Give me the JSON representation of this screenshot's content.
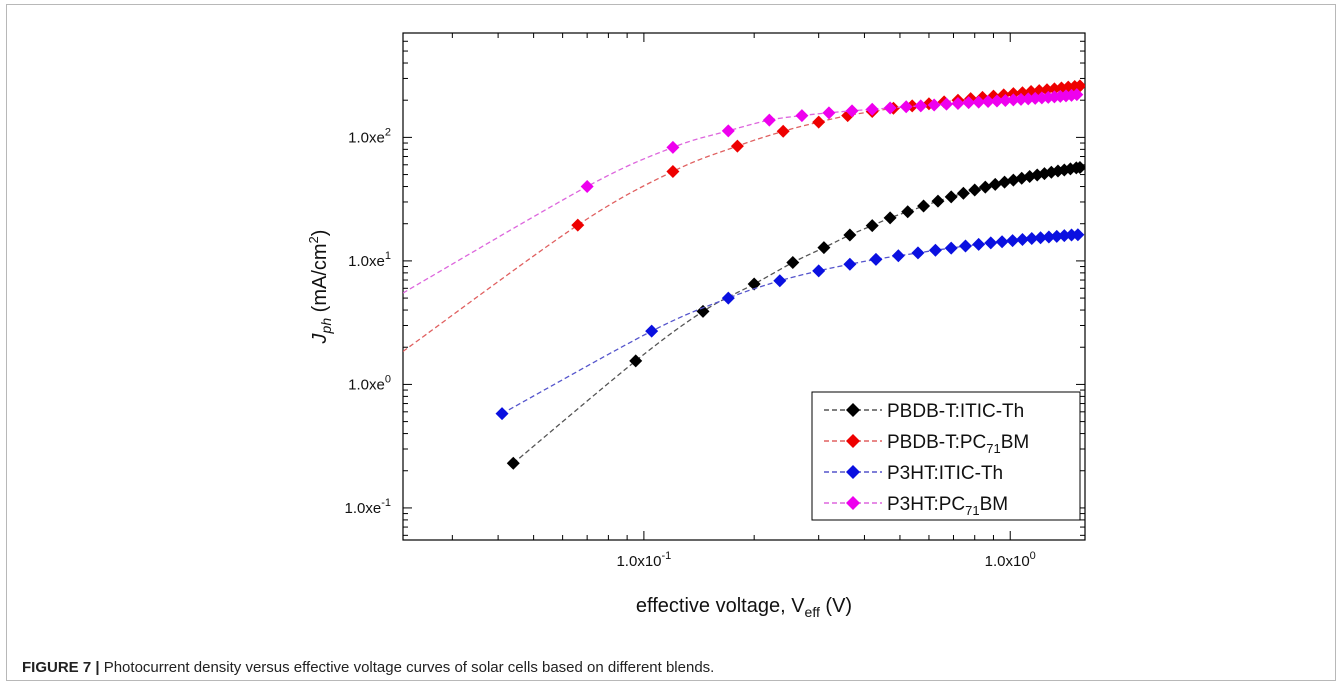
{
  "figure": {
    "caption_label": "FIGURE 7 |",
    "caption_text": " Photocurrent density versus effective voltage curves of solar cells based on different blends."
  },
  "chart_data": {
    "type": "line",
    "xlabel": "effective voltage, V",
    "xlabel_sub": "eff",
    "xlabel_suffix": " (V)",
    "ylabel_main": "J",
    "ylabel_sub": "ph",
    "ylabel_rest": " (mA/cm",
    "ylabel_sup": "2",
    "ylabel_end": ")",
    "x_scale": "log",
    "y_scale": "log",
    "xlim": [
      0.022,
      1.6
    ],
    "ylim": [
      0.055,
      700
    ],
    "x_ticks": [
      {
        "value": 0.1,
        "label": "1.0x10",
        "sup": "-1"
      },
      {
        "value": 1.0,
        "label": "1.0x10",
        "sup": "0"
      }
    ],
    "y_ticks": [
      {
        "value": 0.1,
        "label": "1.0xe",
        "sup": "-1"
      },
      {
        "value": 1,
        "label": "1.0xe",
        "sup": "0"
      },
      {
        "value": 10,
        "label": "1.0xe",
        "sup": "1"
      },
      {
        "value": 100,
        "label": "1.0xe",
        "sup": "2"
      }
    ],
    "grid": false,
    "legend_position": "bottom-right",
    "series": [
      {
        "name": "PBDB-T:ITIC-Th",
        "name_parts": {
          "main": "PBDB-T:ITIC-Th",
          "sub": "",
          "end": ""
        },
        "color": "#000000",
        "line_color": "#555555",
        "x": [
          0.044,
          0.095,
          0.145,
          0.2,
          0.255,
          0.31,
          0.365,
          0.42,
          0.47,
          0.525,
          0.58,
          0.635,
          0.69,
          0.745,
          0.8,
          0.855,
          0.91,
          0.965,
          1.02,
          1.075,
          1.13,
          1.185,
          1.24,
          1.295,
          1.35,
          1.405,
          1.46,
          1.515,
          1.55
        ],
        "y": [
          0.23,
          1.55,
          3.9,
          6.5,
          9.7,
          12.8,
          16.2,
          19.3,
          22.3,
          25.0,
          27.8,
          30.5,
          33.0,
          35.3,
          37.5,
          39.6,
          41.6,
          43.4,
          45.1,
          46.7,
          48.2,
          49.6,
          50.9,
          52.2,
          53.4,
          54.5,
          55.6,
          56.6,
          57.0
        ]
      },
      {
        "name": "PBDB-T:PC71BM",
        "name_parts": {
          "main": "PBDB-T:PC",
          "sub": "71",
          "end": "BM"
        },
        "color": "#ee0000",
        "line_color": "#e06060",
        "x": [
          0.066,
          0.12,
          0.18,
          0.24,
          0.3,
          0.36,
          0.42,
          0.48,
          0.54,
          0.6,
          0.66,
          0.72,
          0.78,
          0.84,
          0.9,
          0.96,
          1.02,
          1.08,
          1.14,
          1.2,
          1.26,
          1.32,
          1.38,
          1.44,
          1.5,
          1.55
        ],
        "y": [
          19.5,
          53,
          85,
          112,
          133,
          150,
          162,
          172,
          180,
          187,
          194,
          200,
          206,
          211,
          216,
          221,
          226,
          230,
          235,
          239,
          243,
          247,
          251,
          255,
          258,
          261
        ]
      },
      {
        "name": "P3HT:ITIC-Th",
        "name_parts": {
          "main": "P3HT:ITIC-Th",
          "sub": "",
          "end": ""
        },
        "color": "#0a10e0",
        "line_color": "#5555cc",
        "x": [
          0.041,
          0.105,
          0.17,
          0.235,
          0.3,
          0.365,
          0.43,
          0.495,
          0.56,
          0.625,
          0.69,
          0.755,
          0.82,
          0.885,
          0.95,
          1.015,
          1.08,
          1.145,
          1.21,
          1.275,
          1.34,
          1.405,
          1.47,
          1.53
        ],
        "y": [
          0.58,
          2.7,
          5.0,
          6.9,
          8.3,
          9.4,
          10.3,
          11.0,
          11.6,
          12.2,
          12.7,
          13.2,
          13.6,
          14.0,
          14.3,
          14.6,
          14.9,
          15.2,
          15.4,
          15.6,
          15.8,
          16.0,
          16.2,
          16.3
        ]
      },
      {
        "name": "P3HT:PC71BM",
        "name_parts": {
          "main": "P3HT:PC",
          "sub": "71",
          "end": "BM"
        },
        "color": "#ee00ee",
        "line_color": "#dd66dd",
        "x": [
          0.07,
          0.12,
          0.17,
          0.22,
          0.27,
          0.32,
          0.37,
          0.42,
          0.47,
          0.52,
          0.57,
          0.62,
          0.67,
          0.72,
          0.77,
          0.82,
          0.87,
          0.92,
          0.97,
          1.02,
          1.07,
          1.12,
          1.17,
          1.22,
          1.27,
          1.32,
          1.37,
          1.42,
          1.47,
          1.52
        ],
        "y": [
          40,
          83,
          113,
          138,
          150,
          158,
          164,
          169,
          173,
          177,
          180,
          183,
          186,
          188,
          191,
          193,
          195,
          197,
          199,
          201,
          203,
          205,
          207,
          209,
          211,
          213,
          215,
          217,
          219,
          222
        ]
      }
    ],
    "fit_curves": [
      {
        "series": "PBDB-T:PC71BM",
        "extend_from_x": 0.022,
        "extend_from_y": 1.85
      },
      {
        "series": "P3HT:PC71BM",
        "extend_from_x": 0.022,
        "extend_from_y": 5.5
      }
    ]
  }
}
